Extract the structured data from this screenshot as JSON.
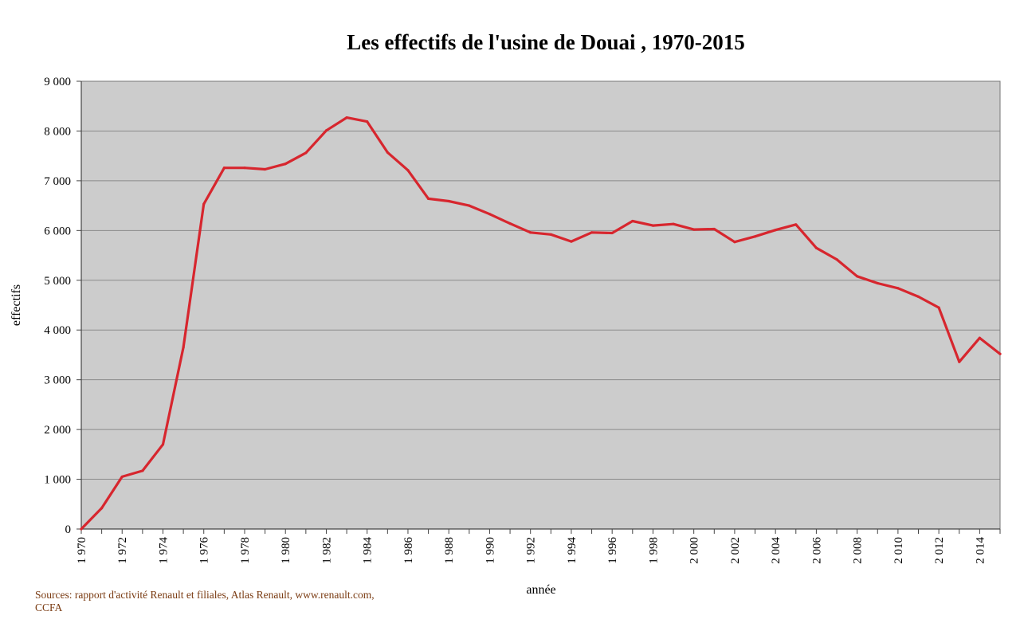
{
  "chart_data": {
    "type": "line",
    "title": "Les effectifs de l'usine de Douai , 1970-2015",
    "xlabel": "année",
    "ylabel": "effectifs",
    "ylim": [
      0,
      9000
    ],
    "xlim": [
      1970,
      2015
    ],
    "grid": true,
    "legend": "none",
    "y_ticks": [
      "0",
      "1 000",
      "2 000",
      "3 000",
      "4 000",
      "5 000",
      "6 000",
      "7 000",
      "8 000",
      "9 000"
    ],
    "x_ticks": [
      "1 970",
      "1 972",
      "1 974",
      "1 976",
      "1 978",
      "1 980",
      "1 982",
      "1 984",
      "1 986",
      "1 988",
      "1 990",
      "1 992",
      "1 994",
      "1 996",
      "1 998",
      "2 000",
      "2 002",
      "2 004",
      "2 006",
      "2 008",
      "2 010",
      "2 012",
      "2 014"
    ],
    "series": [
      {
        "color": "#d7262e",
        "x": [
          1970,
          1971,
          1972,
          1973,
          1974,
          1975,
          1976,
          1977,
          1978,
          1979,
          1980,
          1981,
          1982,
          1983,
          1984,
          1985,
          1986,
          1987,
          1988,
          1989,
          1990,
          1991,
          1992,
          1993,
          1994,
          1995,
          1996,
          1997,
          1998,
          1999,
          2000,
          2001,
          2002,
          2003,
          2004,
          2005,
          2006,
          2007,
          2008,
          2009,
          2010,
          2011,
          2012,
          2013,
          2014,
          2015
        ],
        "y": [
          0,
          420,
          1050,
          1170,
          1700,
          3650,
          6530,
          7260,
          7260,
          7230,
          7340,
          7560,
          8010,
          8270,
          8190,
          7570,
          7210,
          6640,
          6590,
          6500,
          6330,
          6140,
          5960,
          5920,
          5780,
          5960,
          5950,
          6190,
          6100,
          6130,
          6020,
          6030,
          5770,
          5880,
          6010,
          6120,
          5650,
          5420,
          5080,
          4940,
          4840,
          4670,
          4450,
          3360,
          3840,
          3520
        ]
      }
    ],
    "colors": {
      "plot_bg": "#cccccc",
      "grid": "#8a8a8a",
      "axis": "#444444",
      "source_text": "#7a3b12"
    }
  },
  "source_note": {
    "line1": "Sources: rapport d'activité Renault et filiales,  Atlas Renault, www.renault.com,",
    "line2": "CCFA"
  }
}
